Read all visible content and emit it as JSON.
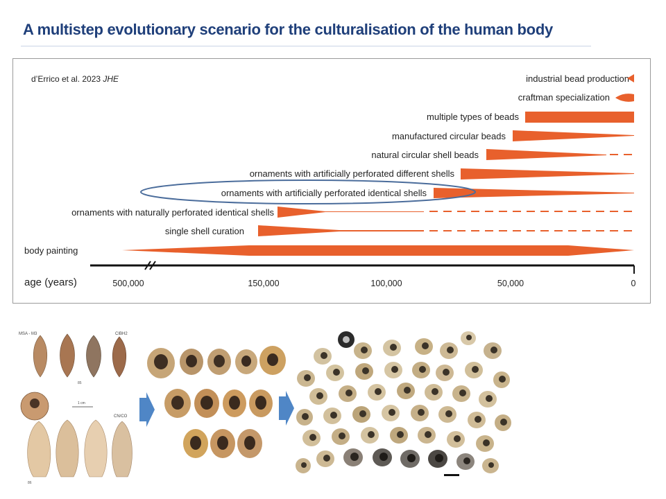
{
  "title": "A multistep evolutionary scenario for the culturalisation of the human body",
  "diagram": {
    "citation_text": "d’Errico et al. 2023 ",
    "citation_journal": "JHE",
    "axis_label": "age (years)",
    "ticks": [
      "500,000",
      "150,000",
      "100,000",
      "50,000",
      "0"
    ],
    "bar_color": "#e8602c",
    "oval_color": "#4a6c9b",
    "rows": [
      {
        "label": "industrial bead production"
      },
      {
        "label": "craftman specialization"
      },
      {
        "label": "multiple types of beads"
      },
      {
        "label": "manufactured circular beads"
      },
      {
        "label": "natural circular shell beads"
      },
      {
        "label": "ornaments with artificially perforated different shells"
      },
      {
        "label": "ornaments with artificially perforated identical shells"
      },
      {
        "label": "ornaments with naturally perforated identical shells"
      },
      {
        "label": "single shell curation"
      },
      {
        "label": "body painting"
      }
    ]
  },
  "photos": {
    "panel1_labels": {
      "tl": "MSA - M3",
      "tr": "CIBH2",
      "n1": "85",
      "scale": "1 cm",
      "mr": "CN/CO",
      "n2": "86"
    },
    "arrow_color": "#4f86c6"
  }
}
